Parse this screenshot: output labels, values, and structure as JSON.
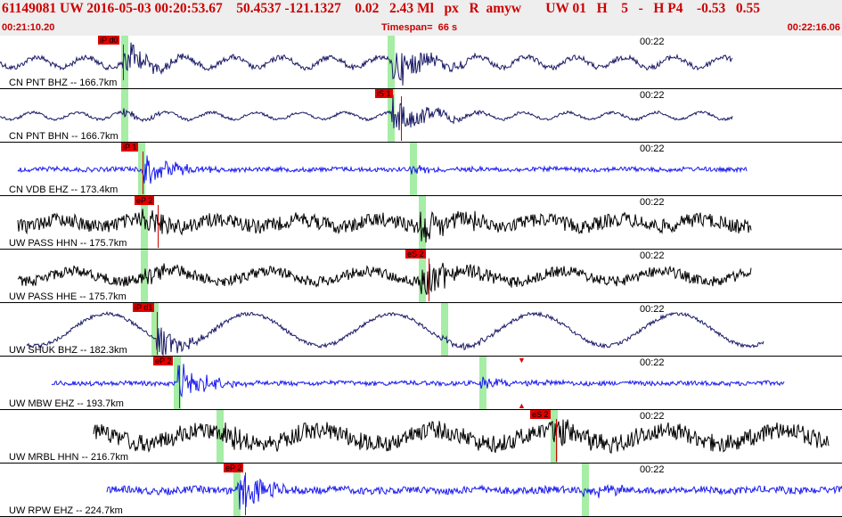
{
  "header": {
    "title": "61149081 UW 2016-05-03 00:20:53.67    50.4537 -121.1327    0.02   2.43 Ml   px   R  amyw       UW 01   H    5   -   H P4    -0.53   0.55",
    "start_time": "00:21:10.20",
    "timespan": "Timespan=  66 s",
    "end_time": "00:22:16.06"
  },
  "colors": {
    "header_bg": "#eeeeee",
    "header_text": "#cc0000",
    "pick_flag": "#e00000",
    "green_band": "#a6eda6",
    "navy": "#1a1a66",
    "blue": "#1a1aee",
    "black": "#000000"
  },
  "panels": [
    {
      "label": "CN PNT BHZ -- 166.7km",
      "tick": "00:22",
      "color": "navy",
      "pick": "iP d0",
      "x0": 0,
      "x1": 822
    },
    {
      "label": "CN PNT BHN -- 166.7km",
      "tick": "00:22",
      "color": "navy",
      "pick": "iS 1",
      "x0": 0,
      "x1": 822
    },
    {
      "label": "CN VDB EHZ -- 173.4km",
      "tick": "00:22",
      "color": "blue",
      "pick": "iP 1",
      "x0": 20,
      "x1": 838
    },
    {
      "label": "UW PASS HHN -- 175.7km",
      "tick": "00:22",
      "color": "black",
      "pick": "eP 2",
      "x0": 20,
      "x1": 843
    },
    {
      "label": "UW PASS HHE -- 175.7km",
      "tick": "00:22",
      "color": "black",
      "pick": "eS 2",
      "x0": 20,
      "x1": 843
    },
    {
      "label": "UW SHUK BHZ -- 182.3km",
      "tick": "00:22",
      "color": "navy",
      "pick": "iP d1",
      "x0": 30,
      "x1": 857
    },
    {
      "label": "UW MBW EHZ -- 193.7km",
      "tick": "00:22",
      "color": "blue",
      "pick": "eP 2",
      "x0": 58,
      "x1": 880
    },
    {
      "label": "UW MRBL HHN -- 216.7km",
      "tick": "00:22",
      "color": "black",
      "pick": "eS 2",
      "x0": 105,
      "x1": 930
    },
    {
      "label": "UW RPW EHZ -- 224.7km",
      "tick": "00:22",
      "color": "blue",
      "pick": "eP 2",
      "x0": 120,
      "x1": 945
    }
  ]
}
